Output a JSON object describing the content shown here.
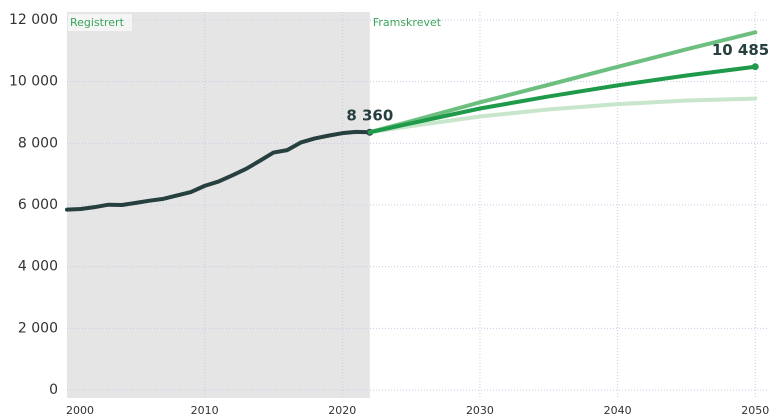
{
  "chart_data": {
    "type": "line",
    "annotations": [
      "Registrert",
      "Framskrevet"
    ],
    "xlim": [
      2000,
      2051
    ],
    "xticks": [
      2000,
      2010,
      2020,
      2030,
      2040,
      2050
    ],
    "ylim": [
      0,
      12000
    ],
    "yticks": [
      0,
      {
        "value": 2000,
        "label": "2 000"
      },
      {
        "value": 4000,
        "label": "4 000"
      },
      {
        "value": 6000,
        "label": "6 000"
      },
      {
        "value": 8000,
        "label": "8 000"
      },
      {
        "value": 10000,
        "label": "10 000"
      },
      {
        "value": 12000,
        "label": "12 000"
      }
    ],
    "grid": true,
    "series": [
      {
        "color": "#263f3f",
        "x": [
          2000,
          2001,
          2002,
          2003,
          2004,
          2005,
          2006,
          2007,
          2008,
          2009,
          2010,
          2011,
          2012,
          2013,
          2014,
          2015,
          2016,
          2017,
          2018,
          2019,
          2020,
          2021,
          2022
        ],
        "values": [
          5850,
          5870,
          5930,
          6010,
          6000,
          6070,
          6140,
          6200,
          6310,
          6420,
          6620,
          6760,
          6960,
          7170,
          7430,
          7700,
          7780,
          8030,
          8160,
          8250,
          8330,
          8370,
          8360
        ],
        "value_labels": [
          null,
          null,
          null,
          null,
          null,
          null,
          null,
          null,
          null,
          null,
          null,
          null,
          null,
          null,
          null,
          null,
          null,
          null,
          null,
          null,
          null,
          null,
          "8 360"
        ]
      },
      {
        "color": "#c8e6cc",
        "x": [
          2022,
          2025,
          2030,
          2035,
          2040,
          2045,
          2050
        ],
        "values": [
          8360,
          8560,
          8870,
          9100,
          9270,
          9390,
          9450
        ]
      },
      {
        "color": "#6cbf7f",
        "x": [
          2022,
          2025,
          2030,
          2035,
          2040,
          2045,
          2050
        ],
        "values": [
          8360,
          8720,
          9330,
          9900,
          10480,
          11050,
          11600
        ]
      },
      {
        "color": "#1f9a4a",
        "x": [
          2022,
          2025,
          2030,
          2035,
          2040,
          2045,
          2050
        ],
        "values": [
          8360,
          8650,
          9130,
          9520,
          9880,
          10200,
          10485
        ],
        "value_labels": [
          null,
          null,
          null,
          null,
          null,
          null,
          "10 485"
        ]
      }
    ]
  }
}
